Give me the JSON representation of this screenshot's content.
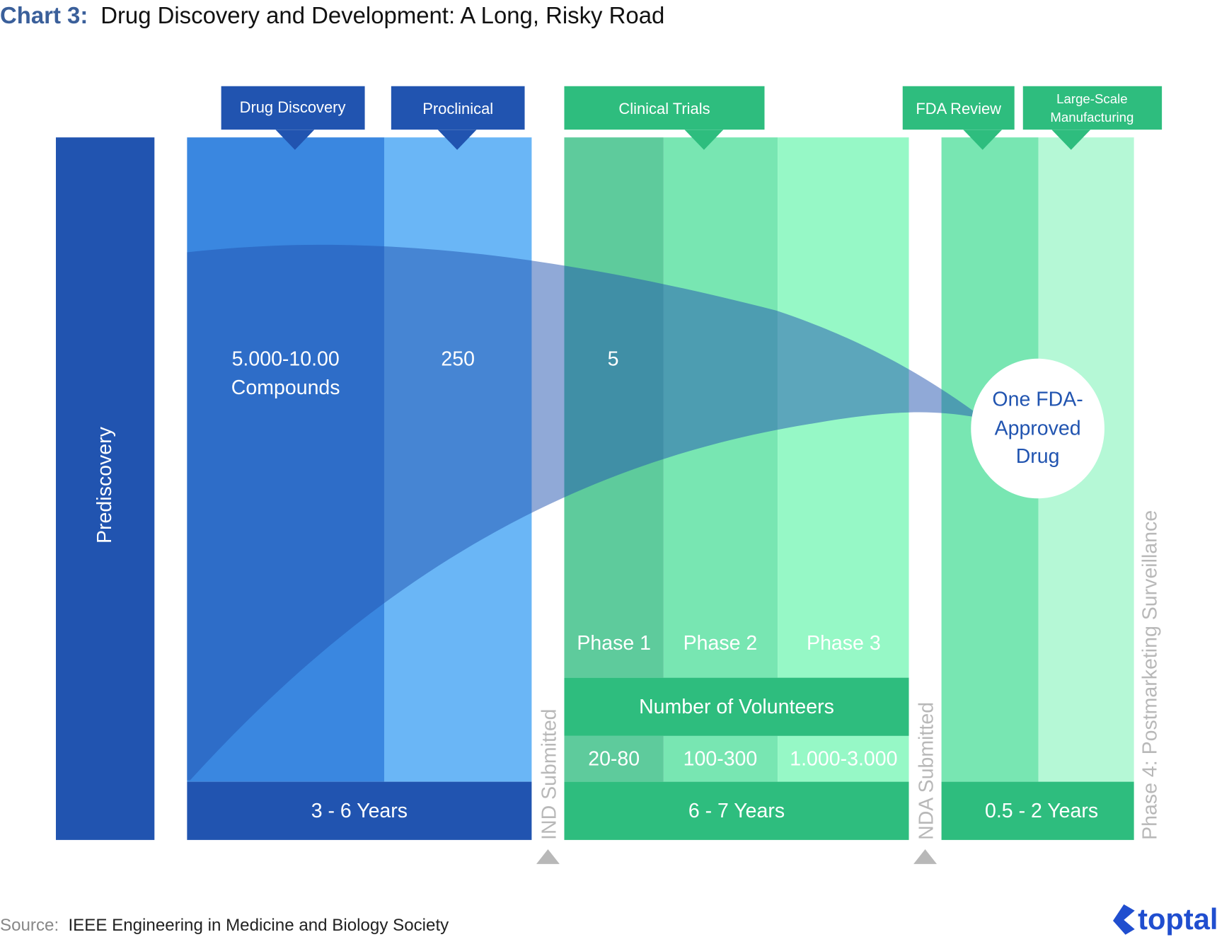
{
  "title": {
    "prefix": "Chart 3:",
    "text": "Drug Discovery and Development: A Long, Risky Road"
  },
  "colors": {
    "dark_blue": "#2154b0",
    "mid_blue": "#3a87e0",
    "light_blue": "#6ab6f6",
    "dark_green": "#2ebd7e",
    "green1": "#5ecb9c",
    "green2": "#78e6b2",
    "green3": "#96f8c6",
    "green4": "#b5f8d6",
    "muted_gray": "#b8b8b8",
    "title_blue": "#3a5f9a"
  },
  "stages": {
    "prediscovery": "Prediscovery",
    "drug_discovery": "Drug Discovery",
    "preclinical": "Proclinical",
    "clinical_trials": "Clinical Trials",
    "fda_review": "FDA Review",
    "manufacturing_line1": "Large-Scale",
    "manufacturing_line2": "Manufacturing"
  },
  "counts": {
    "discovery_line1": "5.000-10.00",
    "discovery_line2": "Compounds",
    "preclinical": "250",
    "clinical": "5",
    "approved_line1": "One FDA-",
    "approved_line2": "Approved",
    "approved_line3": "Drug"
  },
  "phases": [
    "Phase 1",
    "Phase 2",
    "Phase 3"
  ],
  "volunteers": {
    "header": "Number of Volunteers",
    "values": [
      "20-80",
      "100-300",
      "1.000-3.000"
    ]
  },
  "durations": {
    "discovery": "3 - 6 Years",
    "clinical": "6 - 7 Years",
    "fda": "0.5 - 2 Years"
  },
  "milestones": {
    "ind": "IND Submitted",
    "nda": "NDA Submitted",
    "phase4": "Phase 4: Postmarketing Surveillance"
  },
  "source": {
    "label": "Source:",
    "text": "IEEE Engineering in Medicine and Biology Society"
  },
  "logo": "toptal"
}
